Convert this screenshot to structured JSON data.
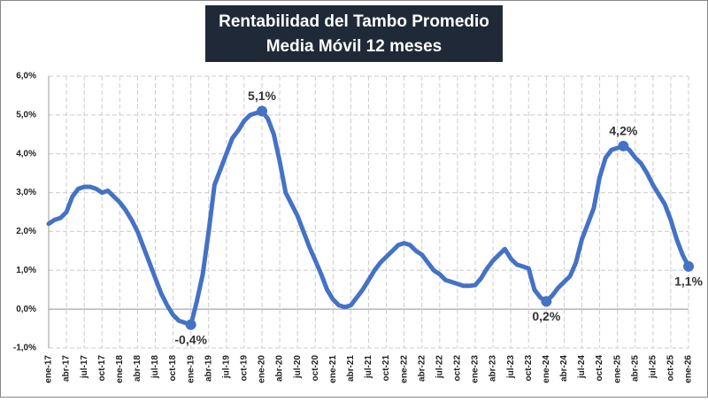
{
  "chart_data": {
    "type": "line",
    "title": "Rentabilidad del Tambo Promedio",
    "subtitle": "Media Móvil 12 meses",
    "categories": [
      "ene-17",
      null,
      null,
      "abr-17",
      null,
      null,
      "jul-17",
      null,
      null,
      "oct-17",
      null,
      null,
      "ene-18",
      null,
      null,
      "abr-18",
      null,
      null,
      "jul-18",
      null,
      null,
      "oct-18",
      null,
      null,
      "ene-19",
      null,
      null,
      "abr-19",
      null,
      null,
      "jul-19",
      null,
      null,
      "oct-19",
      null,
      null,
      "ene-20",
      null,
      null,
      "abr-20",
      null,
      null,
      "jul-20",
      null,
      null,
      "oct-20",
      null,
      null,
      "ene-21",
      null,
      null,
      "abr-21",
      null,
      null,
      "jul-21",
      null,
      null,
      "oct-21",
      null,
      null,
      "ene-22",
      null,
      null,
      "abr-22",
      null,
      null,
      "jul-22",
      null,
      null,
      "oct-22",
      null,
      null,
      "ene-23",
      null,
      null,
      "abr-23",
      null,
      null,
      "jul-23",
      null,
      null,
      "oct-23",
      null,
      null,
      "ene-24",
      null,
      null,
      "abr-24",
      null,
      null,
      "jul-24",
      null,
      null,
      "oct-24",
      null,
      null,
      "ene-25",
      null,
      null,
      "abr-25",
      null,
      null,
      "jul-25",
      null,
      null,
      "oct-25",
      null,
      null,
      "ene-26"
    ],
    "values": [
      2.2,
      2.3,
      2.35,
      2.5,
      2.9,
      3.1,
      3.15,
      3.15,
      3.1,
      3.0,
      3.05,
      2.9,
      2.75,
      2.55,
      2.3,
      2.0,
      1.6,
      1.2,
      0.8,
      0.4,
      0.1,
      -0.15,
      -0.3,
      -0.35,
      -0.4,
      0.2,
      0.9,
      2.0,
      3.2,
      3.6,
      4.0,
      4.4,
      4.6,
      4.85,
      5.0,
      5.05,
      5.1,
      4.9,
      4.5,
      3.8,
      3.0,
      2.7,
      2.4,
      2.0,
      1.6,
      1.25,
      0.9,
      0.5,
      0.25,
      0.1,
      0.05,
      0.1,
      0.3,
      0.5,
      0.75,
      1.0,
      1.2,
      1.35,
      1.5,
      1.65,
      1.7,
      1.65,
      1.5,
      1.4,
      1.2,
      1.0,
      0.9,
      0.75,
      0.7,
      0.65,
      0.6,
      0.6,
      0.62,
      0.8,
      1.05,
      1.25,
      1.4,
      1.55,
      1.3,
      1.15,
      1.1,
      1.05,
      0.5,
      0.3,
      0.2,
      0.35,
      0.55,
      0.7,
      0.85,
      1.2,
      1.8,
      2.2,
      2.6,
      3.4,
      3.9,
      4.1,
      4.15,
      4.2,
      4.1,
      3.9,
      3.75,
      3.5,
      3.2,
      2.95,
      2.7,
      2.3,
      1.8,
      1.4,
      1.1
    ],
    "value_labels": [
      null,
      null,
      null,
      null,
      null,
      null,
      null,
      null,
      null,
      null,
      null,
      null,
      null,
      null,
      null,
      null,
      null,
      null,
      null,
      null,
      null,
      null,
      null,
      null,
      "-0,4%",
      null,
      null,
      null,
      null,
      null,
      null,
      null,
      null,
      null,
      null,
      null,
      "5,1%",
      null,
      null,
      null,
      null,
      null,
      null,
      null,
      null,
      null,
      null,
      null,
      null,
      null,
      null,
      null,
      null,
      null,
      null,
      null,
      null,
      null,
      null,
      null,
      null,
      null,
      null,
      null,
      null,
      null,
      null,
      null,
      null,
      null,
      null,
      null,
      null,
      null,
      null,
      null,
      null,
      null,
      null,
      null,
      null,
      null,
      null,
      null,
      "0,2%",
      null,
      null,
      null,
      null,
      null,
      null,
      null,
      null,
      null,
      null,
      null,
      null,
      "4,2%",
      null,
      null,
      null,
      null,
      null,
      null,
      null,
      null,
      null,
      null,
      "1,1%"
    ],
    "color": "#4472c4",
    "ylim": [
      -1,
      6
    ],
    "yticks": [
      {
        "value": -1,
        "label": "-1,0%"
      },
      {
        "value": 0,
        "label": "0,0%"
      },
      {
        "value": 1,
        "label": "1,0%"
      },
      {
        "value": 2,
        "label": "2,0%"
      },
      {
        "value": 3,
        "label": "3,0%"
      },
      {
        "value": 4,
        "label": "4,0%"
      },
      {
        "value": 5,
        "label": "5,0%"
      },
      {
        "value": 6,
        "label": "6,0%"
      }
    ],
    "grid": true
  }
}
